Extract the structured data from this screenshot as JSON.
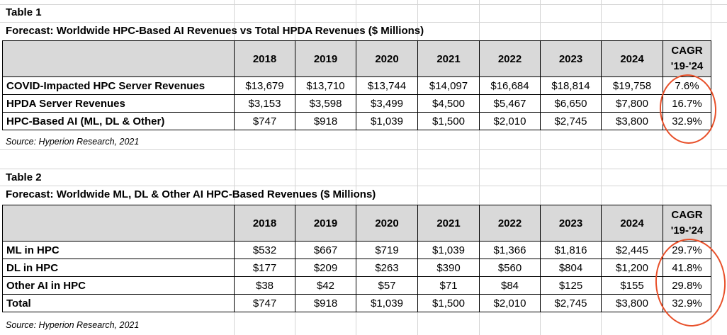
{
  "table1": {
    "label": "Table 1",
    "title": "Forecast: Worldwide HPC-Based AI Revenues vs Total HPDA Revenues ($ Millions)",
    "columns": [
      "2018",
      "2019",
      "2020",
      "2021",
      "2022",
      "2023",
      "2024"
    ],
    "cagr_header": [
      "CAGR",
      "'19-'24"
    ],
    "rows": [
      {
        "label": "COVID-Impacted HPC Server Revenues",
        "values": [
          "$13,679",
          "$13,710",
          "$13,744",
          "$14,097",
          "$16,684",
          "$18,814",
          "$19,758"
        ],
        "cagr": "7.6%"
      },
      {
        "label": "HPDA Server Revenues",
        "values": [
          "$3,153",
          "$3,598",
          "$3,499",
          "$4,500",
          "$5,467",
          "$6,650",
          "$7,800"
        ],
        "cagr": "16.7%"
      },
      {
        "label": "HPC-Based AI (ML, DL & Other)",
        "values": [
          "$747",
          "$918",
          "$1,039",
          "$1,500",
          "$2,010",
          "$2,745",
          "$3,800"
        ],
        "cagr": "32.9%"
      }
    ],
    "source": "Source: Hyperion Research, 2021"
  },
  "table2": {
    "label": "Table 2",
    "title": "Forecast: Worldwide ML, DL & Other AI HPC-Based Revenues ($ Millions)",
    "columns": [
      "2018",
      "2019",
      "2020",
      "2021",
      "2022",
      "2023",
      "2024"
    ],
    "cagr_header": [
      "CAGR",
      "'19-'24"
    ],
    "rows": [
      {
        "label": "ML in HPC",
        "values": [
          "$532",
          "$667",
          "$719",
          "$1,039",
          "$1,366",
          "$1,816",
          "$2,445"
        ],
        "cagr": "29.7%"
      },
      {
        "label": "DL in HPC",
        "values": [
          "$177",
          "$209",
          "$263",
          "$390",
          "$560",
          "$804",
          "$1,200"
        ],
        "cagr": "41.8%"
      },
      {
        "label": "Other AI in HPC",
        "values": [
          "$38",
          "$42",
          "$57",
          "$71",
          "$84",
          "$125",
          "$155"
        ],
        "cagr": "29.8%"
      },
      {
        "label": "Total",
        "values": [
          "$747",
          "$918",
          "$1,039",
          "$1,500",
          "$2,010",
          "$2,745",
          "$3,800"
        ],
        "cagr": "32.9%"
      }
    ],
    "source": "Source: Hyperion Research, 2021"
  },
  "annotation_color": "#e8502a"
}
